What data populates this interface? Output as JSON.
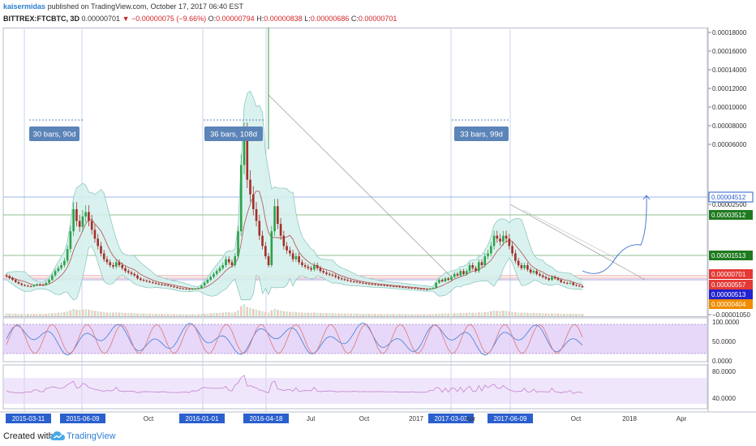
{
  "header": {
    "author": "kaisermidas",
    "published": "published on TradingView.com, October 17, 2017 06:40 EST",
    "symbol": "BITTREX:FTCBTC, 3D",
    "last": "0.00000701",
    "change_arrow": "▼",
    "change": "−0.00000075 (−9.66%)",
    "o_label": "O:",
    "o_value": "0.00000794",
    "h_label": "H:",
    "h_value": "0.00000838",
    "l_label": "L:",
    "l_value": "0.00000686",
    "c_label": "C:",
    "c_value": "0.00000701"
  },
  "footer": {
    "created": "Created with",
    "brand": "TradingView"
  },
  "colors": {
    "up": "#2ea24a",
    "down": "#a3302a",
    "bb_fill": "#d3f0ec",
    "bb_line": "#8cc9c0",
    "label_bg": "#5b84b8",
    "osc_band": "#e1cdf7",
    "osc_line": "#c98cd6"
  },
  "chart_data": {
    "type": "candlestick",
    "y_axis_ticks": [
      "0.00018000",
      "0.00016000",
      "0.00014000",
      "0.00012000",
      "0.00010000",
      "0.00008000",
      "0.00006000",
      "0.00002500",
      "−0.00001050"
    ],
    "ylim": [
      -1.05e-05,
      0.00018
    ],
    "x_axis_labels": [
      "2015-03-11",
      "2015-06-09",
      "Oct",
      "2016-01-01",
      "2016-04-18",
      "Jul",
      "Oct",
      "2017",
      "2017-03-02",
      "Apr",
      "2017-06-09",
      "Oct",
      "2018",
      "Apr"
    ],
    "x_axis_highlighted": [
      "2015-03-11",
      "2015-06-09",
      "2016-01-01",
      "2016-04-18",
      "2017-03-02",
      "2017-06-09"
    ],
    "annotations": [
      "30 bars, 90d",
      "36 bars, 108d",
      "33 bars, 99d"
    ],
    "price_labels": [
      {
        "value": "0.00004512",
        "color": "#2a5fce",
        "style": "outline"
      },
      {
        "value": "0.00003512",
        "color": "#1e7a1e",
        "style": "filled"
      },
      {
        "value": "0.00001513",
        "color": "#1e7a1e",
        "style": "filled"
      },
      {
        "value": "0.00000701",
        "color": "#e53935",
        "style": "filled"
      },
      {
        "value": "0.00000557",
        "color": "#e53935",
        "style": "filled"
      },
      {
        "value": "0.00000513",
        "color": "#2222d0",
        "style": "filled"
      },
      {
        "value": "0.00000404",
        "color": "#f08c00",
        "style": "filled"
      }
    ],
    "close_series": [
      1.45e-05,
      1.32e-05,
      1.2e-05,
      1.05e-05,
      9.5e-06,
      8.5e-06,
      8e-06,
      7.8e-06,
      7.5e-06,
      8.2e-06,
      9e-06,
      8.8e-06,
      8.5e-06,
      1e-05,
      1.2e-05,
      1.5e-05,
      1.8e-05,
      2e-05,
      2.2e-05,
      2.5e-05,
      3.3e-05,
      4.5e-05,
      6e-05,
      5.2e-05,
      4.8e-05,
      5.5e-05,
      5.8e-05,
      5.2e-05,
      4.6e-05,
      4e-05,
      3.5e-05,
      3e-05,
      2.6e-05,
      2.4e-05,
      2.2e-05,
      2.1e-05,
      2.4e-05,
      2.2e-05,
      2e-05,
      1.8e-05,
      1.7e-05,
      1.6e-05,
      1.5e-05,
      1.3e-05,
      1.2e-05,
      1.15e-05,
      1.1e-05,
      1.05e-05,
      1e-05,
      9.5e-06,
      9e-06,
      8.8e-06,
      8.5e-06,
      8e-06,
      7.5e-06,
      7e-06,
      6.5e-06,
      6.2e-06,
      6e-06,
      5.8e-06,
      5.5e-06,
      5.8e-06,
      6e-06,
      6.5e-06,
      8e-06,
      1e-05,
      1.2e-05,
      1.4e-05,
      1.6e-05,
      1.8e-05,
      2e-05,
      2.2e-05,
      2.6e-05,
      2.4e-05,
      2.2e-05,
      2.8e-05,
      4.5e-05,
      9e-05,
      0.00011,
      8e-05,
      7e-05,
      6e-05,
      5.2e-05,
      4.2e-05,
      3.5e-05,
      2.8e-05,
      2.2e-05,
      4.5e-05,
      6.2e-05,
      5e-05,
      4.2e-05,
      3.5e-05,
      3.2e-05,
      3e-05,
      2.6e-05,
      2.8e-05,
      2.4e-05,
      2.2e-05,
      2.1e-05,
      2e-05,
      1.9e-05,
      2.2e-05,
      2e-05,
      1.8e-05,
      1.7e-05,
      1.6e-05,
      1.55e-05,
      1.5e-05,
      1.4e-05,
      1.3e-05,
      1.25e-05,
      1.2e-05,
      1.15e-05,
      1.1e-05,
      1.08e-05,
      1.05e-05,
      1e-05,
      9.8e-06,
      9.5e-06,
      9.2e-06,
      9e-06,
      8.8e-06,
      8.6e-06,
      8.5e-06,
      8.3e-06,
      8e-06,
      7.8e-06,
      7.6e-06,
      7.5e-06,
      7.2e-06,
      7e-06,
      6.8e-06,
      6.6e-06,
      6.5e-06,
      6.3e-06,
      6e-06,
      5.8e-06,
      5.6e-06,
      5.5e-06,
      6e-06,
      6.5e-06,
      1e-05,
      1.2e-05,
      1.1e-05,
      1.3e-05,
      1.2e-05,
      1.4e-05,
      1.6e-05,
      1.5e-05,
      1.8e-05,
      1.6e-05,
      1.8e-05,
      2.2e-05,
      2e-05,
      1.8e-05,
      2.4e-05,
      2.2e-05,
      2.8e-05,
      3e-05,
      3.5e-05,
      4.2e-05,
      4e-05,
      3.8e-05,
      4.2e-05,
      4e-05,
      3.5e-05,
      3e-05,
      2.5e-05,
      2.2e-05,
      2e-05,
      2.2e-05,
      1.9e-05,
      1.7e-05,
      1.8e-05,
      1.6e-05,
      1.5e-05,
      1.4e-05,
      1.3e-05,
      1.2e-05,
      1.4e-05,
      1.3e-05,
      1.2e-05,
      1.05e-05,
      1e-05,
      9.5e-06,
      1e-05,
      8.5e-06,
      8e-06,
      7.8e-06,
      7.01e-06
    ],
    "stoch_rsi": {
      "ticks": [
        "100.0000",
        "50.0000",
        "0.0000"
      ],
      "band": [
        20,
        80
      ]
    },
    "rsi": {
      "ticks": [
        "80.0000",
        "40.0000"
      ],
      "band": [
        30,
        70
      ]
    }
  }
}
